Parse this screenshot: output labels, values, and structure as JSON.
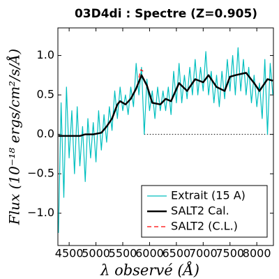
{
  "chart_data": {
    "type": "line",
    "title": "03D4di : Spectre (Z=0.905)",
    "xlabel": "λ observé (Å)",
    "ylabel": "Flux (10⁻¹⁸ ergs/cm²/s/Å)",
    "xlim": [
      4290,
      8310
    ],
    "ylim": [
      -1.41,
      1.35
    ],
    "xticks": [
      4500,
      5000,
      5500,
      6000,
      6500,
      7000,
      7500,
      8000
    ],
    "yticks": [
      {
        "value": -1.0,
        "label": "−1.0"
      },
      {
        "value": -0.5,
        "label": "−0.5"
      },
      {
        "value": 0,
        "label": "0.0"
      },
      {
        "value": 0.5,
        "label": "0.5"
      },
      {
        "value": 1.0,
        "label": "1.0"
      }
    ],
    "hline": {
      "y": 0,
      "x": [
        5900,
        8310
      ],
      "style": "dotted",
      "color": "#000000"
    },
    "legend": "lower right",
    "series": [
      {
        "name": "Extrait (15 A)",
        "color": "#00bfbf",
        "style": "solid",
        "width": 1.2,
        "x": [
          4300,
          4350,
          4400,
          4450,
          4500,
          4550,
          4600,
          4650,
          4700,
          4750,
          4800,
          4850,
          4900,
          4950,
          5000,
          5050,
          5100,
          5150,
          5200,
          5250,
          5300,
          5350,
          5400,
          5450,
          5500,
          5550,
          5600,
          5650,
          5700,
          5750,
          5800,
          5850,
          5900,
          5950,
          6000,
          6050,
          6100,
          6150,
          6200,
          6250,
          6300,
          6350,
          6400,
          6450,
          6500,
          6550,
          6600,
          6650,
          6700,
          6750,
          6800,
          6850,
          6900,
          6950,
          7000,
          7050,
          7100,
          7150,
          7200,
          7250,
          7300,
          7350,
          7400,
          7450,
          7500,
          7550,
          7600,
          7650,
          7700,
          7750,
          7800,
          7850,
          7900,
          7950,
          8000,
          8050,
          8100,
          8150,
          8200,
          8250,
          8300
        ],
        "values": [
          -1.25,
          0.4,
          -0.8,
          0.6,
          -0.3,
          0.3,
          -0.5,
          0.35,
          -0.4,
          0.1,
          -0.6,
          0.2,
          -0.3,
          0.15,
          -0.35,
          0.3,
          -0.2,
          0.25,
          -0.1,
          0.35,
          0.05,
          0.55,
          0.2,
          0.6,
          0.3,
          0.5,
          0.25,
          0.6,
          0.35,
          0.9,
          0.5,
          0.85,
          0.0,
          0.7,
          0.3,
          0.55,
          0.2,
          0.6,
          0.3,
          0.55,
          0.3,
          0.6,
          0.25,
          0.8,
          0.4,
          0.9,
          0.4,
          0.75,
          0.45,
          0.85,
          0.5,
          0.95,
          0.5,
          0.85,
          0.55,
          1.05,
          0.5,
          0.8,
          0.4,
          0.75,
          0.35,
          0.8,
          0.45,
          0.95,
          0.55,
          1.0,
          0.5,
          1.1,
          0.55,
          0.95,
          0.5,
          0.85,
          0.4,
          0.75,
          0.35,
          0.65,
          0.2,
          0.95,
          0.0,
          0.9,
          0.5
        ]
      },
      {
        "name": "SALT2 Cal.",
        "color": "#000000",
        "style": "solid",
        "width": 2.5,
        "x": [
          4300,
          4500,
          4700,
          4800,
          4950,
          5100,
          5200,
          5300,
          5400,
          5450,
          5550,
          5650,
          5750,
          5850,
          5950,
          6050,
          6200,
          6300,
          6400,
          6550,
          6700,
          6850,
          7000,
          7100,
          7250,
          7400,
          7500,
          7600,
          7800,
          7950,
          8050,
          8200,
          8300
        ],
        "values": [
          -0.02,
          -0.02,
          -0.02,
          0.0,
          0.0,
          0.02,
          0.1,
          0.2,
          0.38,
          0.42,
          0.38,
          0.45,
          0.58,
          0.75,
          0.62,
          0.4,
          0.38,
          0.45,
          0.42,
          0.65,
          0.55,
          0.7,
          0.66,
          0.75,
          0.6,
          0.55,
          0.73,
          0.75,
          0.78,
          0.65,
          0.55,
          0.7,
          0.68
        ]
      },
      {
        "name": "SALT2 (C.L.)",
        "color": "#ff0000",
        "style": "dashed",
        "width": 1.2,
        "x": [
          5800,
          5840,
          5880
        ],
        "values": [
          0.72,
          0.82,
          0.8
        ]
      }
    ]
  }
}
